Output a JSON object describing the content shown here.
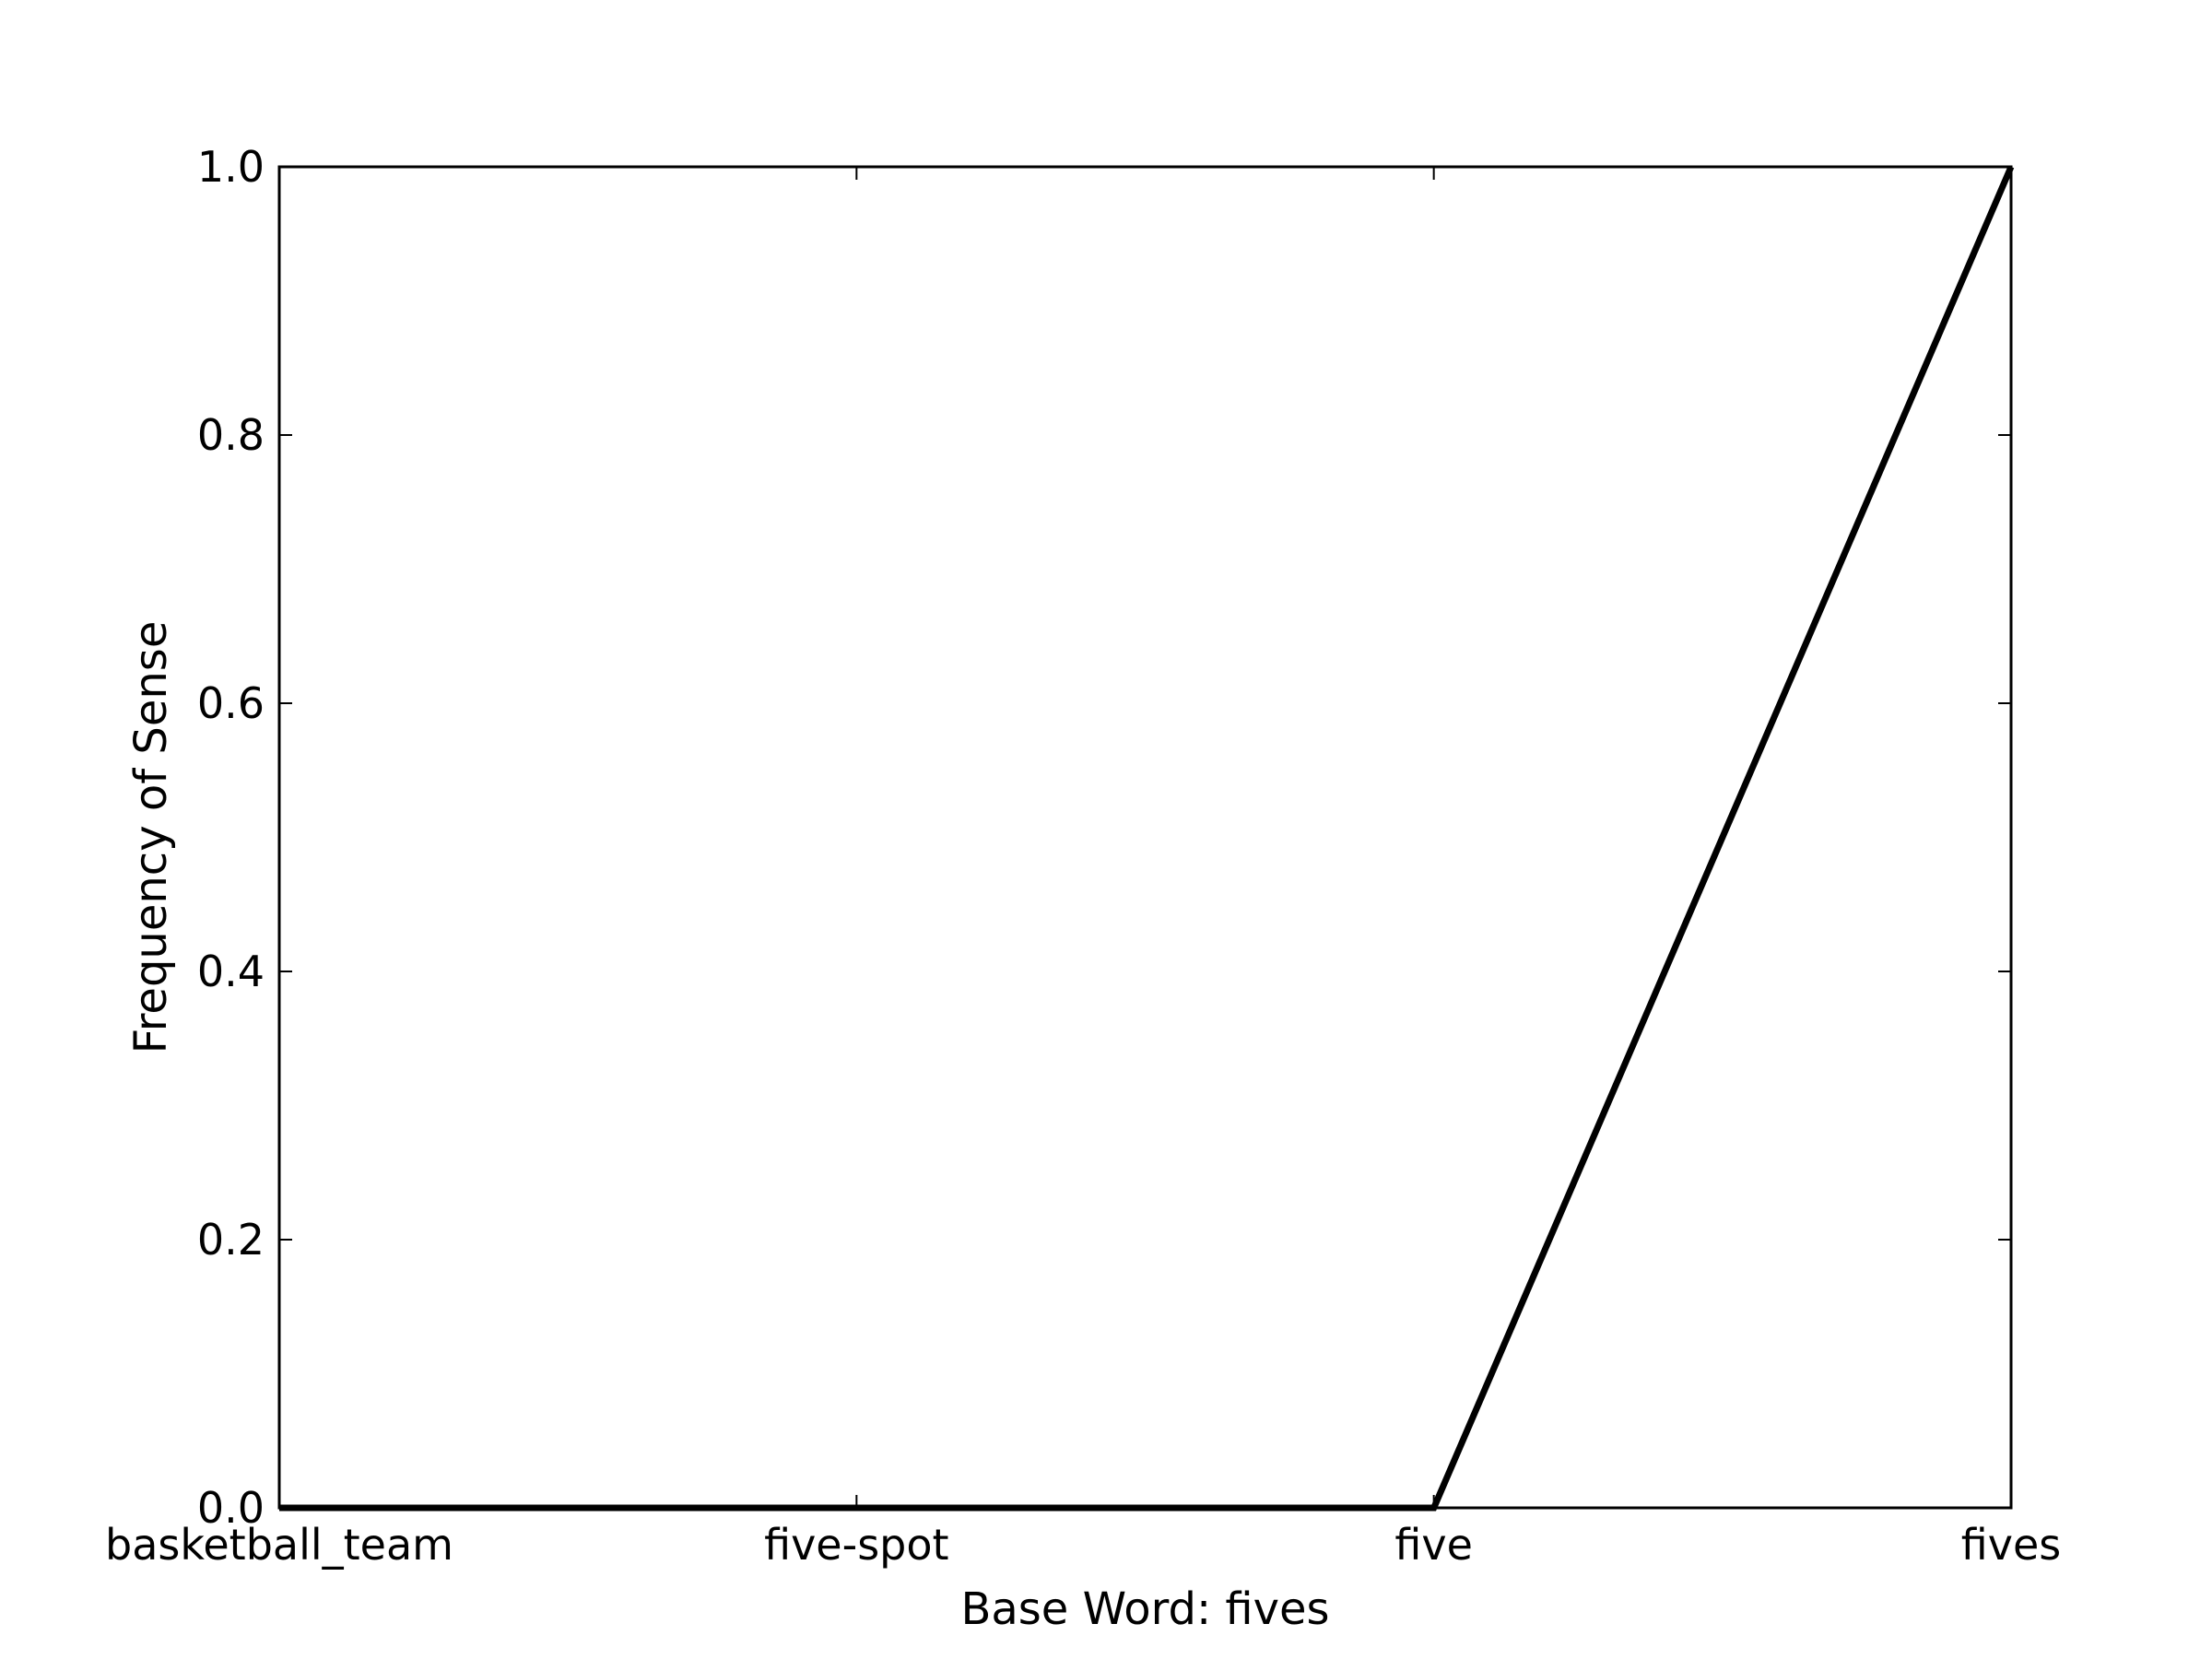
{
  "chart_data": {
    "type": "line",
    "title": "",
    "xlabel": "Base Word: fives",
    "ylabel": "Frequency of Sense",
    "categories": [
      "basketball_team",
      "five-spot",
      "five",
      "fives"
    ],
    "series": [
      {
        "values": [
          0.0,
          0.0,
          0.0,
          1.0
        ],
        "color": "#000000"
      }
    ],
    "ylim": [
      0,
      1
    ],
    "yticks": [
      0.0,
      0.2,
      0.4,
      0.6,
      0.8,
      1.0
    ],
    "ytick_labels": [
      "0.0",
      "0.2",
      "0.4",
      "0.6",
      "0.8",
      "1.0"
    ],
    "grid": false,
    "legend": "none"
  }
}
